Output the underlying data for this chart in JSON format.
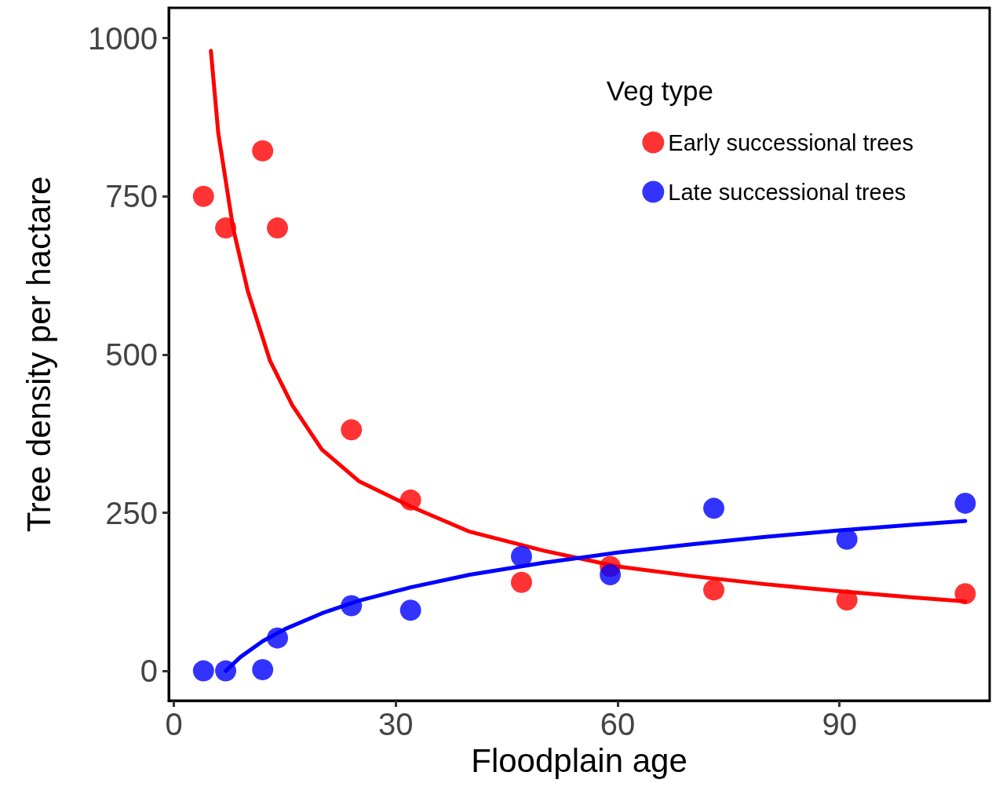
{
  "chart_data": {
    "type": "scatter",
    "xlabel": "Floodplain age",
    "ylabel": "Tree density per hactare",
    "legend_title": "Veg type",
    "xlim": [
      -0.7,
      110.3
    ],
    "xticks": [
      0,
      30,
      60,
      90
    ],
    "ylim": [
      -47,
      1048
    ],
    "yticks": [
      0,
      250,
      500,
      750,
      1000
    ],
    "grid": false,
    "legend": "top right",
    "marker": "circle",
    "series": [
      {
        "name": "Early successional trees",
        "color": "#ff0000",
        "x": [
          4,
          7,
          12,
          14,
          24,
          32,
          47,
          59,
          73,
          91,
          107
        ],
        "values": [
          750,
          700,
          822,
          700,
          381,
          270,
          140,
          165,
          128,
          112,
          122
        ]
      },
      {
        "name": "Late successional trees",
        "color": "#0000ff",
        "x": [
          4,
          7,
          12,
          14,
          24,
          32,
          47,
          59,
          73,
          91,
          107
        ],
        "values": [
          0,
          0,
          2,
          52,
          103,
          96,
          181,
          152,
          257,
          208,
          265
        ]
      },
      {
        "type": "line",
        "color": "#ff0000",
        "line_style": "solid",
        "marker": "none",
        "x": [
          5,
          6,
          8,
          10,
          13,
          16,
          20,
          25,
          32,
          40,
          50,
          60,
          70,
          80,
          90,
          100,
          107
        ],
        "values": [
          980,
          850,
          700,
          600,
          490,
          420,
          350,
          300,
          260,
          220,
          190,
          165,
          150,
          137,
          126,
          116,
          110
        ]
      },
      {
        "type": "line",
        "color": "#0000ff",
        "line_style": "solid",
        "marker": "none",
        "x": [
          7,
          9,
          12,
          15,
          20,
          25,
          32,
          40,
          50,
          60,
          70,
          80,
          90,
          100,
          107
        ],
        "values": [
          0,
          22,
          47,
          66,
          91,
          111,
          132,
          152,
          171,
          187,
          200,
          212,
          222,
          231,
          237
        ]
      }
    ]
  }
}
